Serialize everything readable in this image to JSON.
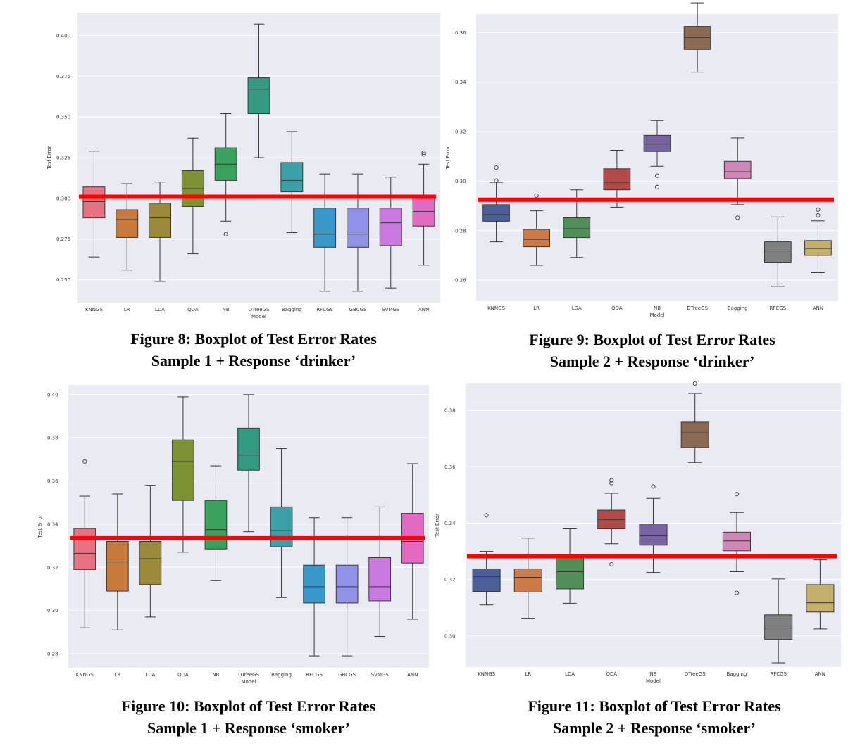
{
  "chart_data": [
    {
      "type": "box",
      "ylabel": "Test Error",
      "xlabel": "Model",
      "ylim": [
        0.236,
        0.414
      ],
      "yticks": [
        "0.250",
        "0.275",
        "0.300",
        "0.325",
        "0.350",
        "0.375",
        "0.400"
      ],
      "ytick_values": [
        0.25,
        0.275,
        0.3,
        0.325,
        0.35,
        0.375,
        0.4
      ],
      "reference_line": 0.301,
      "categories": [
        "KNNGS",
        "LR",
        "LDA",
        "QDA",
        "NB",
        "DTreeGS",
        "Bagging",
        "RFCGS",
        "GBCGS",
        "SVMGS",
        "ANN"
      ],
      "colors": [
        "#e87282",
        "#c87a3c",
        "#9b8a3a",
        "#7d9232",
        "#3aa25a",
        "#349a82",
        "#3aa0a6",
        "#3a98c8",
        "#8f92e6",
        "#c87ae0",
        "#e26ac2"
      ],
      "boxes": [
        {
          "whislo": 0.264,
          "q1": 0.288,
          "med": 0.298,
          "q3": 0.307,
          "whishi": 0.329,
          "fliers": []
        },
        {
          "whislo": 0.256,
          "q1": 0.276,
          "med": 0.287,
          "q3": 0.293,
          "whishi": 0.309,
          "fliers": []
        },
        {
          "whislo": 0.249,
          "q1": 0.276,
          "med": 0.288,
          "q3": 0.297,
          "whishi": 0.31,
          "fliers": []
        },
        {
          "whislo": 0.266,
          "q1": 0.295,
          "med": 0.306,
          "q3": 0.317,
          "whishi": 0.337,
          "fliers": []
        },
        {
          "whislo": 0.286,
          "q1": 0.311,
          "med": 0.321,
          "q3": 0.331,
          "whishi": 0.352,
          "fliers": [
            0.278
          ]
        },
        {
          "whislo": 0.325,
          "q1": 0.352,
          "med": 0.367,
          "q3": 0.374,
          "whishi": 0.407,
          "fliers": []
        },
        {
          "whislo": 0.279,
          "q1": 0.304,
          "med": 0.311,
          "q3": 0.322,
          "whishi": 0.341,
          "fliers": []
        },
        {
          "whislo": 0.243,
          "q1": 0.27,
          "med": 0.278,
          "q3": 0.294,
          "whishi": 0.315,
          "fliers": []
        },
        {
          "whislo": 0.243,
          "q1": 0.27,
          "med": 0.278,
          "q3": 0.294,
          "whishi": 0.315,
          "fliers": []
        },
        {
          "whislo": 0.245,
          "q1": 0.271,
          "med": 0.285,
          "q3": 0.294,
          "whishi": 0.313,
          "fliers": []
        },
        {
          "whislo": 0.259,
          "q1": 0.283,
          "med": 0.292,
          "q3": 0.3,
          "whishi": 0.321,
          "fliers": [
            0.327,
            0.328
          ]
        }
      ],
      "caption": [
        "Figure 8: Boxplot of Test Error Rates",
        "Sample 1 + Response ‘drinker’"
      ]
    },
    {
      "type": "box",
      "ylabel": "Test Error",
      "xlabel": "Model",
      "ylim": [
        0.2515,
        0.3675
      ],
      "yticks": [
        "0.26",
        "0.28",
        "0.30",
        "0.32",
        "0.34",
        "0.36"
      ],
      "ytick_values": [
        0.26,
        0.28,
        0.3,
        0.32,
        0.34,
        0.36
      ],
      "reference_line": 0.2925,
      "categories": [
        "KNNGS",
        "LR",
        "LDA",
        "QDA",
        "NB",
        "DTreeGS",
        "Bagging",
        "RFCGS",
        "ANN"
      ],
      "colors": [
        "#4a5f96",
        "#cc7a48",
        "#509058",
        "#b24a4a",
        "#7864a2",
        "#8a6a52",
        "#d086b6",
        "#808080",
        "#c4b06c"
      ],
      "boxes": [
        {
          "whislo": 0.2755,
          "q1": 0.2838,
          "med": 0.2865,
          "q3": 0.2905,
          "whishi": 0.2995,
          "fliers": [
            0.3055,
            0.3002
          ]
        },
        {
          "whislo": 0.266,
          "q1": 0.2735,
          "med": 0.2765,
          "q3": 0.2805,
          "whishi": 0.288,
          "fliers": [
            0.2942
          ]
        },
        {
          "whislo": 0.2692,
          "q1": 0.2772,
          "med": 0.2808,
          "q3": 0.2852,
          "whishi": 0.2965,
          "fliers": []
        },
        {
          "whislo": 0.2895,
          "q1": 0.2965,
          "med": 0.2995,
          "q3": 0.305,
          "whishi": 0.3125,
          "fliers": []
        },
        {
          "whislo": 0.306,
          "q1": 0.312,
          "med": 0.315,
          "q3": 0.3185,
          "whishi": 0.3245,
          "fliers": [
            0.3022,
            0.2976
          ]
        },
        {
          "whislo": 0.344,
          "q1": 0.3532,
          "med": 0.358,
          "q3": 0.3625,
          "whishi": 0.372,
          "fliers": []
        },
        {
          "whislo": 0.2905,
          "q1": 0.301,
          "med": 0.3038,
          "q3": 0.308,
          "whishi": 0.3175,
          "fliers": [
            0.2852
          ]
        },
        {
          "whislo": 0.2575,
          "q1": 0.267,
          "med": 0.2718,
          "q3": 0.2755,
          "whishi": 0.2855,
          "fliers": []
        },
        {
          "whislo": 0.263,
          "q1": 0.27,
          "med": 0.2728,
          "q3": 0.276,
          "whishi": 0.284,
          "fliers": [
            0.2885,
            0.2862
          ]
        }
      ],
      "caption": [
        "Figure 9: Boxplot of Test Error Rates",
        "Sample 2 + Response ‘drinker’"
      ]
    },
    {
      "type": "box",
      "ylabel": "Test Error",
      "xlabel": "Model",
      "ylim": [
        0.2735,
        0.4045
      ],
      "yticks": [
        "0.28",
        "0.30",
        "0.32",
        "0.34",
        "0.36",
        "0.38",
        "0.40"
      ],
      "ytick_values": [
        0.28,
        0.3,
        0.32,
        0.34,
        0.36,
        0.38,
        0.4
      ],
      "reference_line": 0.3335,
      "categories": [
        "KNNGS",
        "LR",
        "LDA",
        "QDA",
        "NB",
        "DTreeGS",
        "Bagging",
        "RFCGS",
        "GBCGS",
        "SVMGS",
        "ANN"
      ],
      "colors": [
        "#e87282",
        "#c87a3c",
        "#9b8a3a",
        "#7d9232",
        "#3aa25a",
        "#349a82",
        "#3aa0a6",
        "#3a98c8",
        "#8f92e6",
        "#c87ae0",
        "#e26ac2"
      ],
      "boxes": [
        {
          "whislo": 0.292,
          "q1": 0.319,
          "med": 0.3265,
          "q3": 0.338,
          "whishi": 0.353,
          "fliers": [
            0.369
          ]
        },
        {
          "whislo": 0.291,
          "q1": 0.309,
          "med": 0.3225,
          "q3": 0.332,
          "whishi": 0.354,
          "fliers": []
        },
        {
          "whislo": 0.297,
          "q1": 0.312,
          "med": 0.324,
          "q3": 0.332,
          "whishi": 0.358,
          "fliers": []
        },
        {
          "whislo": 0.327,
          "q1": 0.351,
          "med": 0.369,
          "q3": 0.379,
          "whishi": 0.399,
          "fliers": []
        },
        {
          "whislo": 0.314,
          "q1": 0.3285,
          "med": 0.3375,
          "q3": 0.351,
          "whishi": 0.367,
          "fliers": []
        },
        {
          "whislo": 0.3365,
          "q1": 0.365,
          "med": 0.372,
          "q3": 0.3845,
          "whishi": 0.4,
          "fliers": []
        },
        {
          "whislo": 0.306,
          "q1": 0.3295,
          "med": 0.337,
          "q3": 0.348,
          "whishi": 0.375,
          "fliers": []
        },
        {
          "whislo": 0.279,
          "q1": 0.3035,
          "med": 0.311,
          "q3": 0.321,
          "whishi": 0.343,
          "fliers": []
        },
        {
          "whislo": 0.279,
          "q1": 0.3035,
          "med": 0.311,
          "q3": 0.321,
          "whishi": 0.343,
          "fliers": []
        },
        {
          "whislo": 0.288,
          "q1": 0.3045,
          "med": 0.311,
          "q3": 0.3245,
          "whishi": 0.348,
          "fliers": []
        },
        {
          "whislo": 0.296,
          "q1": 0.322,
          "med": 0.332,
          "q3": 0.345,
          "whishi": 0.368,
          "fliers": []
        }
      ],
      "caption": [
        "Figure 10: Boxplot of Test Error Rates",
        "Sample 1 + Response ‘smoker’"
      ]
    },
    {
      "type": "box",
      "ylabel": "Test Error",
      "xlabel": "Model",
      "ylim": [
        0.289,
        0.3895
      ],
      "yticks": [
        "0.30",
        "0.32",
        "0.34",
        "0.36",
        "0.38"
      ],
      "ytick_values": [
        0.3,
        0.32,
        0.34,
        0.36,
        0.38
      ],
      "reference_line": 0.3283,
      "categories": [
        "KNNGS",
        "LR",
        "LDA",
        "QDA",
        "NB",
        "DTreeGS",
        "Bagging",
        "RFCGS",
        "ANN"
      ],
      "colors": [
        "#4a5f96",
        "#cc7a48",
        "#509058",
        "#b24a4a",
        "#7864a2",
        "#8a6a52",
        "#d086b6",
        "#808080",
        "#c4b06c"
      ],
      "boxes": [
        {
          "whislo": 0.311,
          "q1": 0.3158,
          "med": 0.321,
          "q3": 0.3238,
          "whishi": 0.33,
          "fliers": [
            0.3428
          ]
        },
        {
          "whislo": 0.3063,
          "q1": 0.3156,
          "med": 0.3208,
          "q3": 0.3238,
          "whishi": 0.3347,
          "fliers": []
        },
        {
          "whislo": 0.3116,
          "q1": 0.3167,
          "med": 0.3228,
          "q3": 0.3279,
          "whishi": 0.338,
          "fliers": []
        },
        {
          "whislo": 0.3327,
          "q1": 0.338,
          "med": 0.3412,
          "q3": 0.3446,
          "whishi": 0.3506,
          "fliers": [
            0.3552,
            0.3542,
            0.3254
          ]
        },
        {
          "whislo": 0.3225,
          "q1": 0.3322,
          "med": 0.3355,
          "q3": 0.3397,
          "whishi": 0.3488,
          "fliers": [
            0.353
          ]
        },
        {
          "whislo": 0.3615,
          "q1": 0.3668,
          "med": 0.372,
          "q3": 0.3758,
          "whishi": 0.386,
          "fliers": [
            0.3895
          ]
        },
        {
          "whislo": 0.3228,
          "q1": 0.3302,
          "med": 0.3337,
          "q3": 0.3368,
          "whishi": 0.3438,
          "fliers": [
            0.3503,
            0.3153
          ]
        },
        {
          "whislo": 0.2905,
          "q1": 0.2988,
          "med": 0.3028,
          "q3": 0.3075,
          "whishi": 0.3202,
          "fliers": []
        },
        {
          "whislo": 0.3025,
          "q1": 0.3085,
          "med": 0.3118,
          "q3": 0.3182,
          "whishi": 0.327,
          "fliers": []
        }
      ],
      "caption": [
        "Figure 11: Boxplot of Test Error Rates",
        "Sample 2 + Response ‘smoker’"
      ]
    }
  ]
}
